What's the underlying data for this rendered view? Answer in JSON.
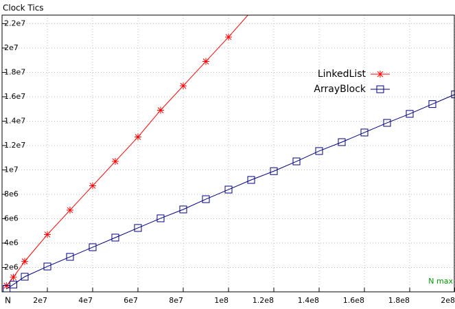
{
  "chart_data": {
    "type": "line",
    "title": "Clock Tics",
    "x_label": "N",
    "annotation": "N max",
    "xlim": [
      0,
      200000000
    ],
    "ylim": [
      0,
      22700000
    ],
    "xticks": [
      {
        "value": 20000000,
        "label": "2e7"
      },
      {
        "value": 40000000,
        "label": "4e7"
      },
      {
        "value": 60000000,
        "label": "6e7"
      },
      {
        "value": 80000000,
        "label": "8e7"
      },
      {
        "value": 100000000,
        "label": "1e8"
      },
      {
        "value": 120000000,
        "label": "1.2e8"
      },
      {
        "value": 140000000,
        "label": "1.4e8"
      },
      {
        "value": 160000000,
        "label": "1.6e8"
      },
      {
        "value": 180000000,
        "label": "1.8e8"
      },
      {
        "value": 200000000,
        "label": "2e8"
      }
    ],
    "yticks": [
      {
        "value": 2000000,
        "label": "2e6"
      },
      {
        "value": 4000000,
        "label": "4e6"
      },
      {
        "value": 6000000,
        "label": "6e6"
      },
      {
        "value": 8000000,
        "label": "8e6"
      },
      {
        "value": 10000000,
        "label": "1e7"
      },
      {
        "value": 12000000,
        "label": "1.2e7"
      },
      {
        "value": 14000000,
        "label": "1.4e7"
      },
      {
        "value": 16000000,
        "label": "1.6e7"
      },
      {
        "value": 18000000,
        "label": "1.8e7"
      },
      {
        "value": 20000000,
        "label": "2e7"
      },
      {
        "value": 22000000,
        "label": "2.2e7"
      }
    ],
    "grid": true,
    "legend": "upper right",
    "series": [
      {
        "name": "LinkedList",
        "color": "#ff0000",
        "marker": "star",
        "x": [
          2000000,
          5000000,
          10000000,
          20000000,
          30000000,
          40000000,
          50000000,
          60000000,
          70000000,
          80000000,
          90000000,
          100000000,
          110000000
        ],
        "values": [
          500000,
          1200000,
          2500000,
          4700000,
          6700000,
          8700000,
          10700000,
          12700000,
          14900000,
          16900000,
          18900000,
          20900000,
          23000000
        ]
      },
      {
        "name": "ArrayBlock",
        "color": "#000080",
        "marker": "square",
        "x": [
          2000000,
          5000000,
          10000000,
          20000000,
          30000000,
          40000000,
          50000000,
          60000000,
          70000000,
          80000000,
          90000000,
          100000000,
          110000000,
          120000000,
          130000000,
          140000000,
          150000000,
          160000000,
          170000000,
          180000000,
          190000000,
          200000000
        ],
        "values": [
          250000,
          600000,
          1240000,
          2080000,
          2870000,
          3660000,
          4450000,
          5240000,
          6030000,
          6760000,
          7600000,
          8390000,
          9180000,
          9900000,
          10700000,
          11550000,
          12280000,
          13070000,
          13860000,
          14600000,
          15400000,
          16200000
        ]
      }
    ]
  }
}
